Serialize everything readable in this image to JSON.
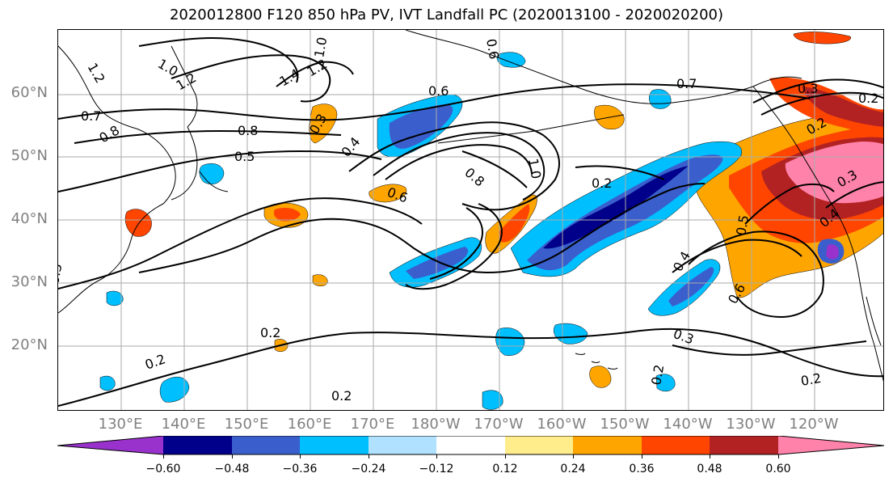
{
  "title": "2020012800 F120 850 hPa PV, IVT Landfall PC (2020013100 - 2020020200)",
  "lat_labels": [
    "60°N",
    "50°N",
    "40°N",
    "30°N",
    "20°N"
  ],
  "lon_labels": [
    "130°E",
    "140°E",
    "150°E",
    "160°E",
    "170°E",
    "180°W",
    "170°W",
    "160°W",
    "150°W",
    "140°W",
    "130°W",
    "120°W"
  ],
  "colorbar": {
    "ticks": [
      "−0.60",
      "−0.48",
      "−0.36",
      "−0.24",
      "−0.12",
      "0.12",
      "0.24",
      "0.36",
      "0.48",
      "0.60"
    ],
    "colors": [
      "#9932CC",
      "#00008B",
      "#3A5FCD",
      "#00BFFF",
      "#B0E2FF",
      "#FFFFFF",
      "#FFEC8B",
      "#FFA500",
      "#FF4500",
      "#B22222",
      "#FF82AB"
    ]
  },
  "contour_labels": [
    "1.2",
    "1.0",
    "1.2",
    "1.0",
    "1.4",
    "1.2",
    "0.6",
    "0.6",
    "0.7",
    "0.8",
    "0.7",
    "0.8",
    "0.5",
    "0.3",
    "0.4",
    "0.6",
    "1.0",
    "0.8",
    "0.2",
    "0.2",
    "0.3",
    "0.4",
    "0.6",
    "0.5",
    "0.3",
    "0.2",
    "0.2",
    "0.2",
    "0.3",
    "0.2",
    "0.2",
    "0.2",
    "0.3",
    "0.4"
  ]
}
